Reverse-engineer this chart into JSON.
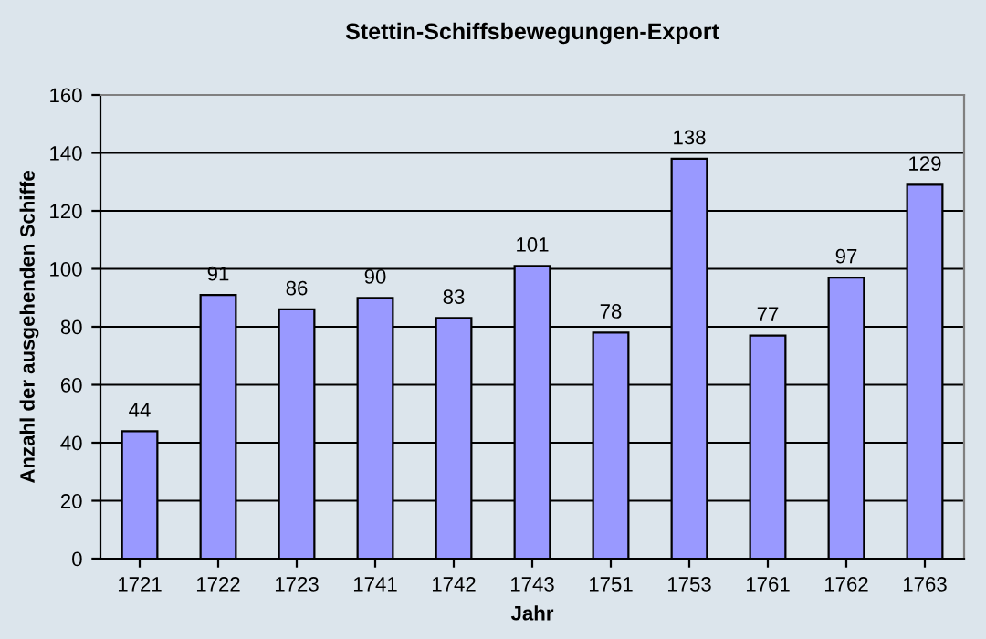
{
  "chart_data": {
    "type": "bar",
    "title": "Stettin-Schiffsbewegungen-Export",
    "xlabel": "Jahr",
    "ylabel": "Anzahl der ausgehenden Schiffe",
    "categories": [
      "1721",
      "1722",
      "1723",
      "1741",
      "1742",
      "1743",
      "1751",
      "1753",
      "1761",
      "1762",
      "1763"
    ],
    "values": [
      44,
      91,
      86,
      90,
      83,
      101,
      78,
      138,
      77,
      97,
      129
    ],
    "color": "#9999ff",
    "ylim": [
      0,
      160
    ],
    "yticks": [
      0,
      20,
      40,
      60,
      80,
      100,
      120,
      140,
      160
    ],
    "grid": "y",
    "data_labels": true,
    "legend": false
  }
}
